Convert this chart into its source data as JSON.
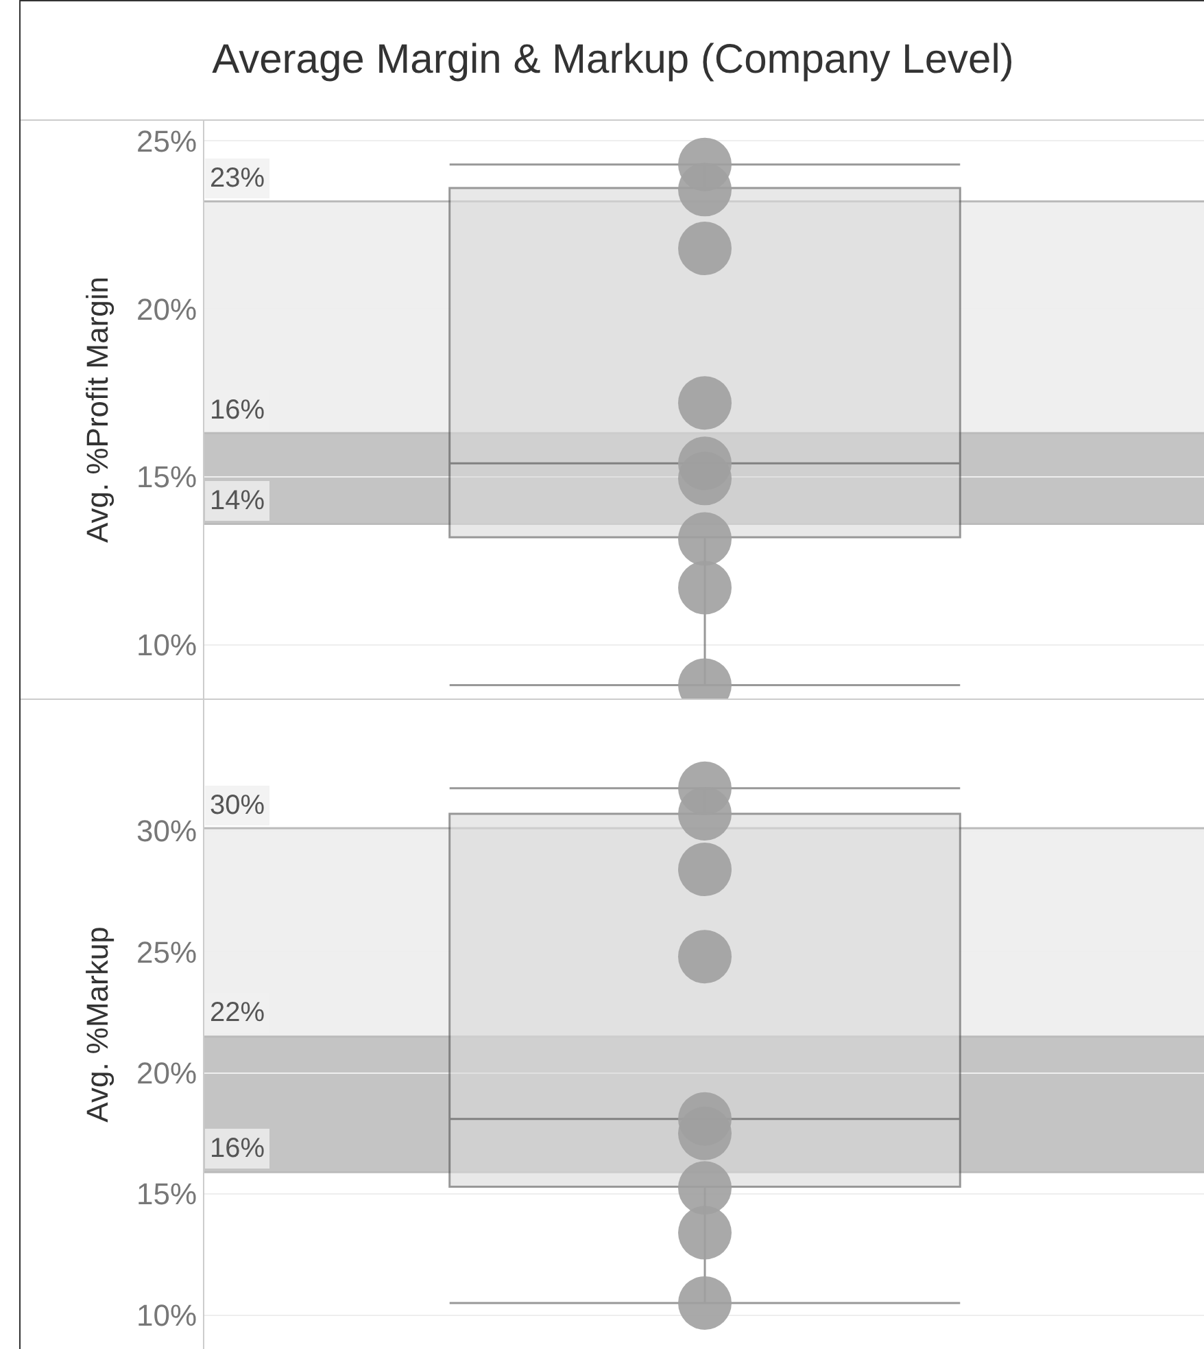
{
  "chart_data": [
    {
      "type": "box",
      "title": "Average Margin & Markup (Company Level)",
      "ylabel": "Avg. %Profit Margin",
      "categories": [
        null
      ],
      "ylim": [
        8.4,
        25.6
      ],
      "yticks": [
        {
          "value": 10,
          "label": "10%"
        },
        {
          "value": 15,
          "label": "15%"
        },
        {
          "value": 20,
          "label": "20%"
        },
        {
          "value": 25,
          "label": "25%"
        }
      ],
      "grid": "y",
      "series": [
        {
          "type": "box",
          "color": "#d9d9d9",
          "boxes": [
            {
              "low": 8.8,
              "q1": 13.2,
              "median": 15.4,
              "q3": 23.6,
              "high": 24.3
            }
          ]
        },
        {
          "type": "scatter",
          "color": "#a0a0a0",
          "x": [
            null,
            null,
            null,
            null,
            null,
            null,
            null,
            null,
            null
          ],
          "values": [
            24.3,
            23.55,
            21.8,
            17.2,
            15.4,
            14.95,
            13.15,
            11.7,
            8.8
          ]
        }
      ],
      "bands": [
        {
          "axis": "y",
          "from": 16.3,
          "to": 23.2,
          "color": "#efefef"
        },
        {
          "axis": "y",
          "from": 13.6,
          "to": 16.3,
          "color": "#c4c4c4"
        }
      ],
      "ref_lines": [
        {
          "axis": "y",
          "value": 23.2,
          "label": "23%"
        },
        {
          "axis": "y",
          "value": 16.3,
          "label": "16%"
        },
        {
          "axis": "y",
          "value": 13.6,
          "label": "14%"
        }
      ],
      "marker": "circle"
    },
    {
      "type": "box",
      "ylabel": "Avg. %Markup",
      "categories": [
        null
      ],
      "ylim": [
        8.6,
        35.4
      ],
      "yticks": [
        {
          "value": 10,
          "label": "10%"
        },
        {
          "value": 15,
          "label": "15%"
        },
        {
          "value": 20,
          "label": "20%"
        },
        {
          "value": 25,
          "label": "25%"
        },
        {
          "value": 30,
          "label": "30%"
        }
      ],
      "grid": "y",
      "series": [
        {
          "type": "box",
          "color": "#d9d9d9",
          "boxes": [
            {
              "low": 10.5,
              "q1": 15.3,
              "median": 18.1,
              "q3": 30.7,
              "high": 31.75
            }
          ]
        },
        {
          "type": "scatter",
          "color": "#a0a0a0",
          "x": [
            null,
            null,
            null,
            null,
            null,
            null,
            null,
            null,
            null
          ],
          "values": [
            31.75,
            30.7,
            28.4,
            24.8,
            18.1,
            17.5,
            15.25,
            13.4,
            10.5
          ]
        }
      ],
      "bands": [
        {
          "axis": "y",
          "from": 21.5,
          "to": 30.1,
          "color": "#efefef"
        },
        {
          "axis": "y",
          "from": 15.9,
          "to": 21.5,
          "color": "#c4c4c4"
        }
      ],
      "ref_lines": [
        {
          "axis": "y",
          "value": 30.1,
          "label": "30%"
        },
        {
          "axis": "y",
          "value": 21.5,
          "label": "22%"
        },
        {
          "axis": "y",
          "value": 15.9,
          "label": "16%"
        }
      ],
      "marker": "circle"
    }
  ]
}
